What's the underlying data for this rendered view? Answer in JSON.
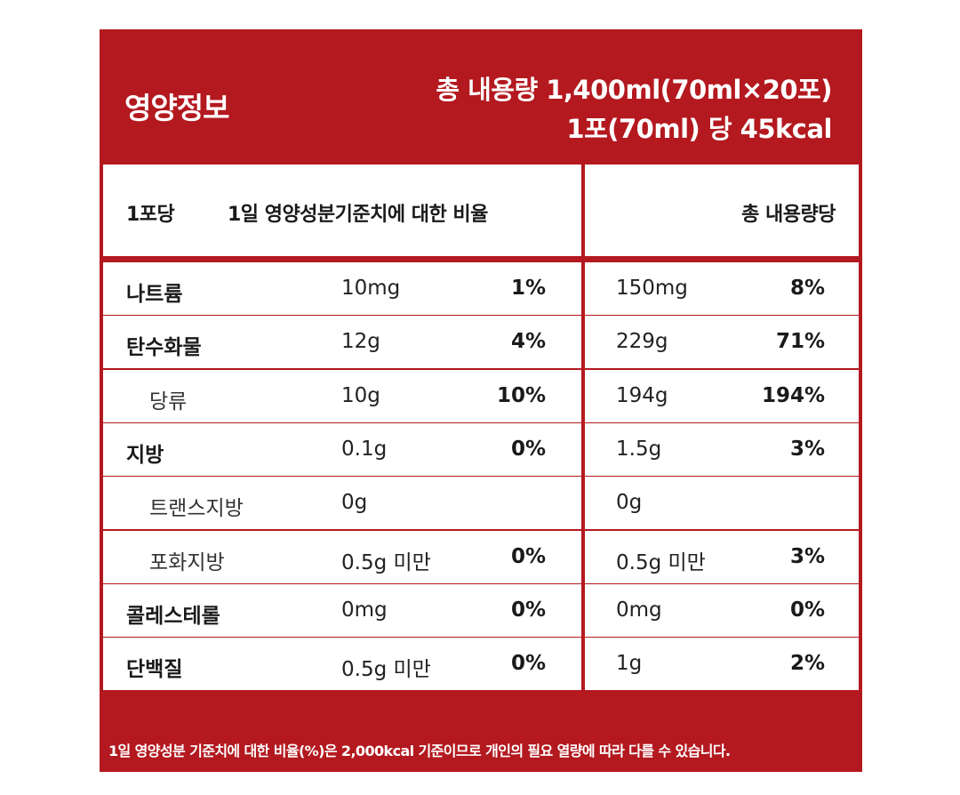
{
  "header": {
    "title": "영양정보",
    "total_line": "총 내용량 1,400ml(70ml×20포)",
    "per_line": "1포(70ml) 당 45kcal"
  },
  "columns": {
    "per_pack": "1포당",
    "daily_ratio": "1일 영양성분기준치에 대한 비율",
    "per_total": "총 내용량당"
  },
  "rows": [
    {
      "name": "나트륨",
      "amount": "10mg",
      "pct": "1%",
      "total_amount": "150mg",
      "total_pct": "8%",
      "sub": false
    },
    {
      "name": "탄수화물",
      "amount": "12g",
      "pct": "4%",
      "total_amount": "229g",
      "total_pct": "71%",
      "sub": false
    },
    {
      "name": "당류",
      "amount": "10g",
      "pct": "10%",
      "total_amount": "194g",
      "total_pct": "194%",
      "sub": true
    },
    {
      "name": "지방",
      "amount": "0.1g",
      "pct": "0%",
      "total_amount": "1.5g",
      "total_pct": "3%",
      "sub": false
    },
    {
      "name": "트랜스지방",
      "amount": "0g",
      "pct": "",
      "total_amount": "0g",
      "total_pct": "",
      "sub": true
    },
    {
      "name": "포화지방",
      "amount": "0.5g 미만",
      "pct": "0%",
      "total_amount": "0.5g 미만",
      "total_pct": "3%",
      "sub": true
    },
    {
      "name": "콜레스테롤",
      "amount": "0mg",
      "pct": "0%",
      "total_amount": "0mg",
      "total_pct": "0%",
      "sub": false
    },
    {
      "name": "단백질",
      "amount": "0.5g 미만",
      "pct": "0%",
      "total_amount": "1g",
      "total_pct": "2%",
      "sub": false
    }
  ],
  "footnote": "1일 영양성분 기준치에 대한 비율(%)은 2,000kcal 기준이므로 개인의 필요 열량에 따라 다를 수 있습니다.",
  "colors": {
    "brand_red": "#b3191f",
    "text": "#1a1a1a",
    "background": "#ffffff"
  }
}
